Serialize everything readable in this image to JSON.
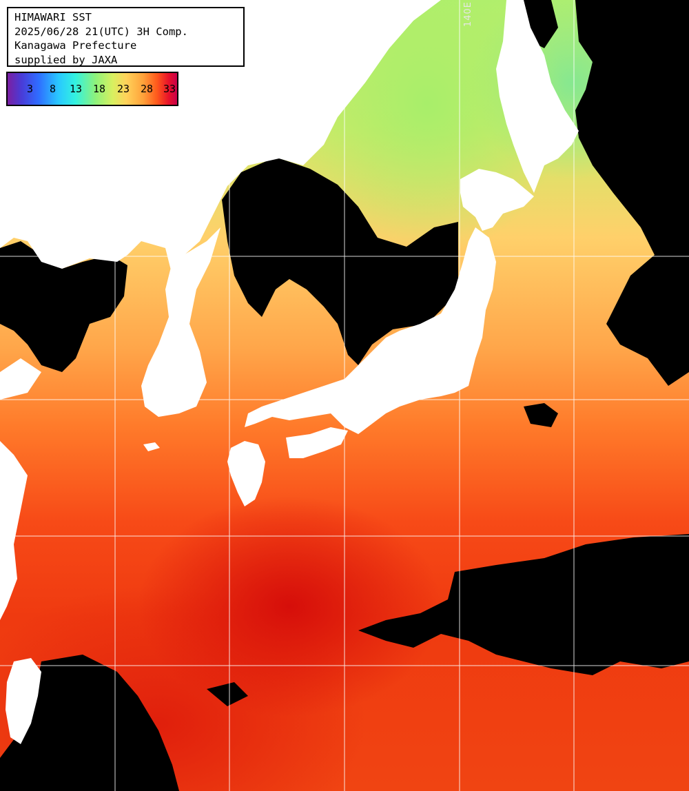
{
  "header": {
    "line1": "HIMAWARI SST",
    "line2": "2025/06/28 21(UTC) 3H Comp.",
    "line3": "Kanagawa Prefecture",
    "line4": "supplied by JAXA"
  },
  "colorbar": {
    "ticks": [
      "3",
      "8",
      "13",
      "18",
      "23",
      "28",
      "33"
    ],
    "unit_colors": [
      "#7b1fa2",
      "#2f6bff",
      "#33f2e0",
      "#8ff27a",
      "#ffd25a",
      "#ff5a1c",
      "#c8004a"
    ]
  },
  "grid": {
    "longitude_label": "140E"
  },
  "colors": {
    "land": "#ffffff",
    "cloud_mask": "#000000",
    "warm_sea": "#f04412",
    "cool_sea": "#b2ef6c",
    "grid_lines": "#ffffff"
  },
  "icons": {
    "land": "land-shape",
    "cloud": "cloud-mask-shape"
  }
}
